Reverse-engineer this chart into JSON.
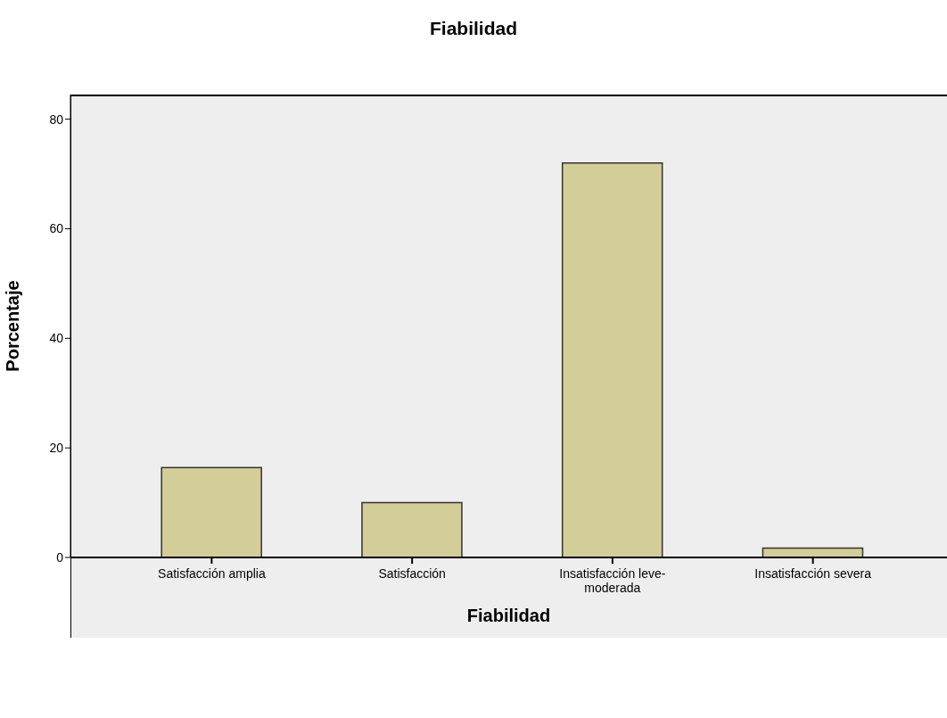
{
  "chart_data": {
    "type": "bar",
    "title": "Fiabilidad",
    "xlabel": "Fiabilidad",
    "ylabel": "Porcentaje",
    "categories": [
      "Satisfacción amplia",
      "Satisfacción",
      "Insatisfacción leve-moderada",
      "Insatisfacción severa"
    ],
    "values": [
      16.4,
      10.0,
      72.0,
      1.7
    ],
    "color": "#d3cd97",
    "ylim": [
      0,
      84.5
    ],
    "yticks": [
      0,
      20,
      40,
      60,
      80
    ],
    "grid": false,
    "legend": false
  }
}
